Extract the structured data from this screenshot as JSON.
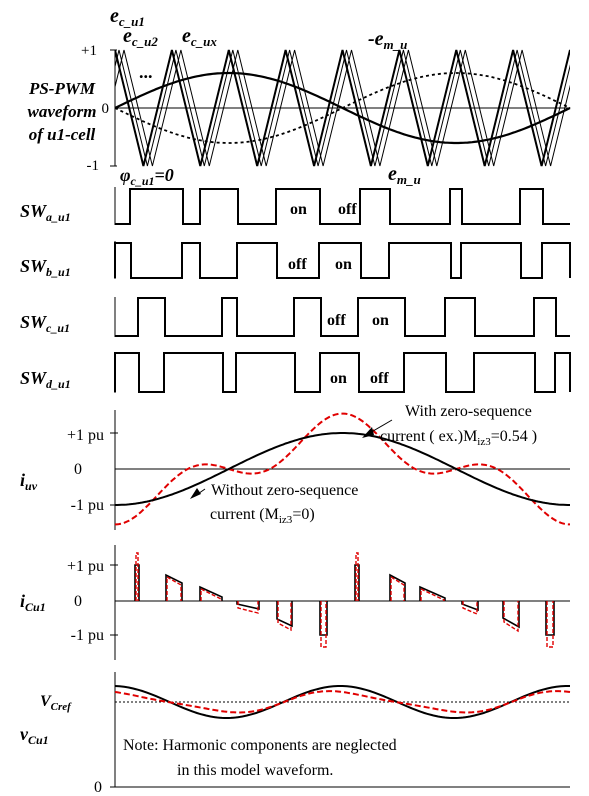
{
  "colors": {
    "ink": "#000000",
    "accent_red": "#e00000",
    "background": "#ffffff"
  },
  "pwm": {
    "label_lines": [
      "PS-PWM",
      "waveform",
      "of u1-cell"
    ],
    "tick_plus": "+1",
    "tick_zero": "0",
    "tick_minus": "-1",
    "carrier_label_1": "e",
    "carrier_label_1_sub": "c_u1",
    "carrier_label_2": "e",
    "carrier_label_2_sub": "c_u2",
    "carrier_label_x": "e",
    "carrier_label_x_sub": "c_ux",
    "ellipsis": "...",
    "neg_mod_label": "-e",
    "neg_mod_label_sub": "m_u",
    "mod_label": "e",
    "mod_label_sub": "m_u",
    "phase_label": "φ",
    "phase_label_sub": "c_u1",
    "phase_label_suffix": "=0",
    "carrier_cycles": 8
  },
  "switches": [
    {
      "name": "SW",
      "sub": "a_u1",
      "text_left": "on",
      "text_right": "off"
    },
    {
      "name": "SW",
      "sub": "b_u1",
      "text_left": "off",
      "text_right": "on"
    },
    {
      "name": "SW",
      "sub": "c_u1",
      "text_left": "off",
      "text_right": "on"
    },
    {
      "name": "SW",
      "sub": "d_u1",
      "text_left": "on",
      "text_right": "off"
    }
  ],
  "iuv": {
    "label": "i",
    "label_sub": "uv",
    "tick_plus": "+1 pu",
    "tick_zero": "0",
    "tick_minus": "-1 pu",
    "annot_with_line1": "With zero-sequence",
    "annot_with_line2_a": "current ( ex.)M",
    "annot_with_line2_sub": "iz3",
    "annot_with_line2_b": "=0.54 )",
    "annot_without_line1": "Without zero-sequence",
    "annot_without_line2_a": "current (M",
    "annot_without_line2_sub": "iz3",
    "annot_without_line2_b": "=0)",
    "zero_seq_amplitude": 0.54
  },
  "icu": {
    "label": "i",
    "label_sub": "Cu1",
    "tick_plus": "+1 pu",
    "tick_zero": "0",
    "tick_minus": "-1 pu"
  },
  "vcu": {
    "label": "v",
    "label_sub": "Cu1",
    "ref_label": "V",
    "ref_label_sub": "Cref",
    "tick_zero": "0",
    "note_line1": "Note: Harmonic components are neglected",
    "note_line2": "in this model waveform."
  }
}
